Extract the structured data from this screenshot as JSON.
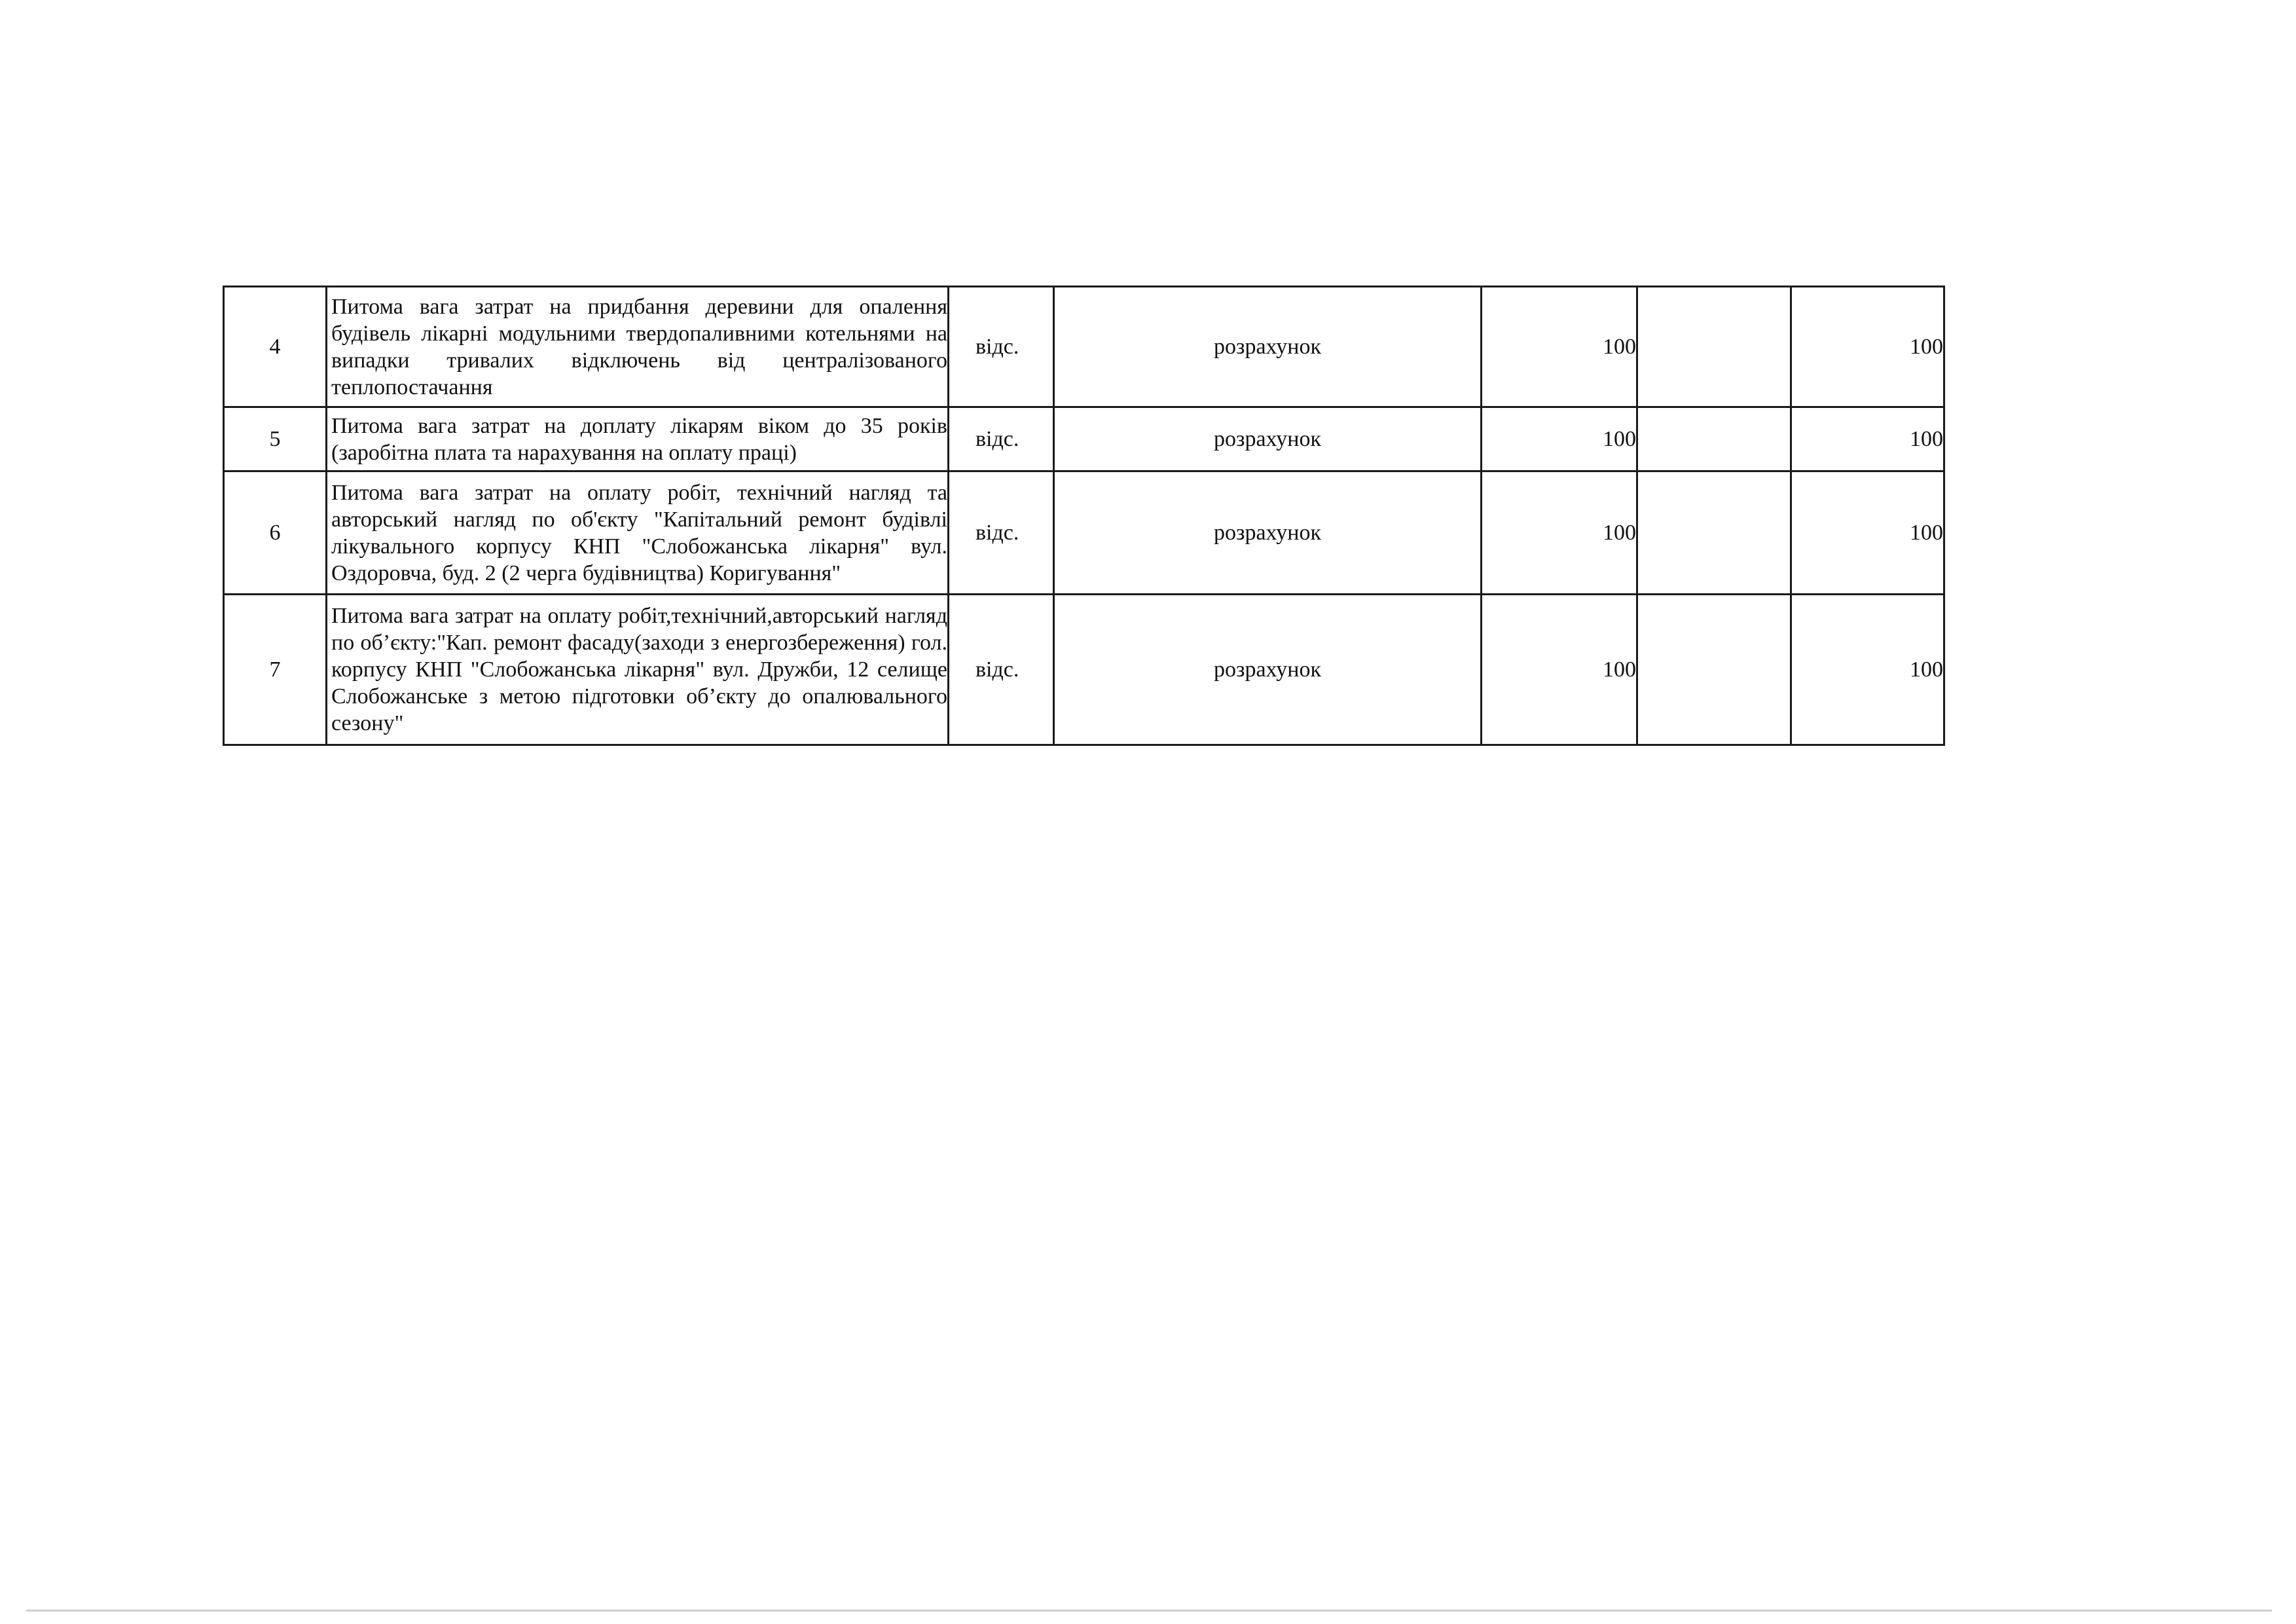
{
  "table": {
    "rows": [
      {
        "num": "4",
        "desc": "Питома вага затрат на придбання деревини для опалення будівель лікарні модульними твердопаливними котельнями на випадки тривалих відключень від централізованого теплопостачання",
        "unit": "відс.",
        "source": "розрахунок",
        "value1": "100",
        "value2": "100"
      },
      {
        "num": "5",
        "desc": "Питома вага затрат на доплату лікарям віком до 35 років (заробітна плата та нарахування на оплату праці)",
        "unit": "відс.",
        "source": "розрахунок",
        "value1": "100",
        "value2": "100"
      },
      {
        "num": "6",
        "desc": "Питома вага затрат на оплату робіт, технічний нагляд та авторський нагляд по об'єкту \"Капітальний ремонт будівлі лікувального корпусу КНП \"Слобожанська лікарня\" вул. Оздоровча, буд. 2 (2 черга будівництва) Коригування\"",
        "unit": "відс.",
        "source": "розрахунок",
        "value1": "100",
        "value2": "100"
      },
      {
        "num": "7",
        "desc": "Питома вага затрат на оплату робіт,технічний,авторський нагляд по об’єкту:\"Кап. ремонт фасаду(заходи з енергозбереження) гол. корпусу КНП \"Слобожанська лікарня\" вул. Дружби, 12 селище Слобожанське з метою підготовки об’єкту до опалювального сезону\"",
        "unit": "відс.",
        "source": "розрахунок",
        "value1": "100",
        "value2": "100"
      }
    ]
  }
}
